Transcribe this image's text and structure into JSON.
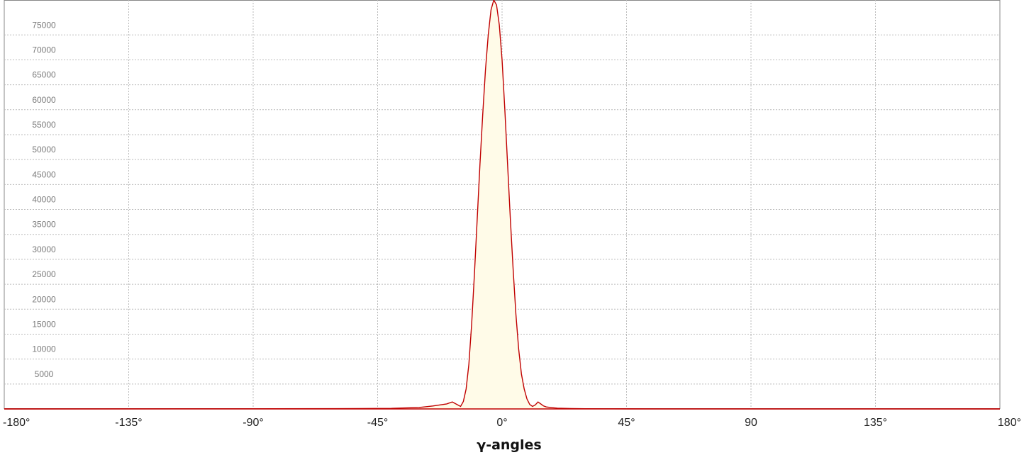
{
  "chart_data": {
    "type": "area",
    "title": "",
    "xlabel": "γ-angles",
    "ylabel": "",
    "xlim": [
      -180,
      180
    ],
    "ylim": [
      0,
      82000
    ],
    "x_tick_values": [
      -180,
      -135,
      -90,
      -45,
      0,
      45,
      90,
      135,
      180
    ],
    "x_tick_labels": [
      "-180°",
      "-135°",
      "-90°",
      "-45°",
      "0°",
      "45°",
      "90",
      "135°",
      "180°"
    ],
    "y_ticks": [
      5000,
      10000,
      15000,
      20000,
      25000,
      30000,
      35000,
      40000,
      45000,
      50000,
      55000,
      60000,
      65000,
      70000,
      75000
    ],
    "grid": true,
    "colors": {
      "line": "#c00000",
      "fill": "#fffbe8",
      "grid": "#bbbbbb",
      "frame": "#888888"
    },
    "series": [
      {
        "x": [
          -180,
          -90,
          -60,
          -40,
          -30,
          -25,
          -20,
          -18,
          -16,
          -15,
          -14,
          -13,
          -12,
          -11,
          -10,
          -9,
          -8,
          -7,
          -6,
          -5,
          -4,
          -3,
          -2,
          -1,
          0,
          1,
          2,
          3,
          4,
          5,
          6,
          7,
          8,
          9,
          10,
          11,
          12,
          13,
          14,
          15,
          16,
          18,
          20,
          25,
          30,
          40,
          60,
          90,
          180
        ],
        "y": [
          0,
          30,
          60,
          120,
          300,
          600,
          1000,
          1400,
          800,
          500,
          1500,
          4000,
          9000,
          17000,
          27000,
          38000,
          49000,
          59000,
          68000,
          75000,
          80000,
          82000,
          81000,
          77000,
          70000,
          60000,
          49000,
          38000,
          28000,
          19000,
          12000,
          7000,
          4000,
          2000,
          900,
          500,
          800,
          1400,
          1000,
          600,
          400,
          250,
          150,
          80,
          40,
          20,
          10,
          5,
          0
        ]
      }
    ]
  }
}
